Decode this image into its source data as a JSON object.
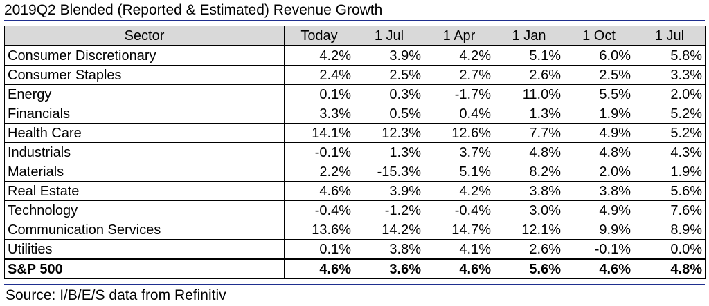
{
  "title": "2019Q2 Blended (Reported & Estimated) Revenue Growth",
  "columns": [
    "Sector",
    "Today",
    "1 Jul",
    "1 Apr",
    "1 Jan",
    "1 Oct",
    "1 Jul"
  ],
  "rows": [
    {
      "sector": "Consumer Discretionary",
      "values": [
        "4.2%",
        "3.9%",
        "4.2%",
        "5.1%",
        "6.0%",
        "5.8%"
      ]
    },
    {
      "sector": "Consumer Staples",
      "values": [
        "2.4%",
        "2.5%",
        "2.7%",
        "2.6%",
        "2.5%",
        "3.3%"
      ]
    },
    {
      "sector": "Energy",
      "values": [
        "0.1%",
        "0.3%",
        "-1.7%",
        "11.0%",
        "5.5%",
        "2.0%"
      ]
    },
    {
      "sector": "Financials",
      "values": [
        "3.3%",
        "0.5%",
        "0.4%",
        "1.3%",
        "1.9%",
        "5.2%"
      ]
    },
    {
      "sector": "Health Care",
      "values": [
        "14.1%",
        "12.3%",
        "12.6%",
        "7.7%",
        "4.9%",
        "5.2%"
      ]
    },
    {
      "sector": "Industrials",
      "values": [
        "-0.1%",
        "1.3%",
        "3.7%",
        "4.8%",
        "4.8%",
        "4.3%"
      ]
    },
    {
      "sector": "Materials",
      "values": [
        "2.2%",
        "-15.3%",
        "5.1%",
        "8.2%",
        "2.0%",
        "1.9%"
      ]
    },
    {
      "sector": "Real Estate",
      "values": [
        "4.6%",
        "3.9%",
        "4.2%",
        "3.8%",
        "3.8%",
        "5.6%"
      ]
    },
    {
      "sector": "Technology",
      "values": [
        "-0.4%",
        "-1.2%",
        "-0.4%",
        "3.0%",
        "4.9%",
        "7.6%"
      ]
    },
    {
      "sector": "Communication Services",
      "values": [
        "13.6%",
        "14.2%",
        "14.7%",
        "12.1%",
        "9.9%",
        "8.9%"
      ]
    },
    {
      "sector": "Utilities",
      "values": [
        "0.1%",
        "3.8%",
        "4.1%",
        "2.6%",
        "-0.1%",
        "0.0%"
      ]
    }
  ],
  "total": {
    "sector": "S&P 500",
    "values": [
      "4.6%",
      "3.6%",
      "4.6%",
      "5.6%",
      "4.6%",
      "4.8%"
    ]
  },
  "source": "Source: I/B/E/S data from Refinitiv"
}
